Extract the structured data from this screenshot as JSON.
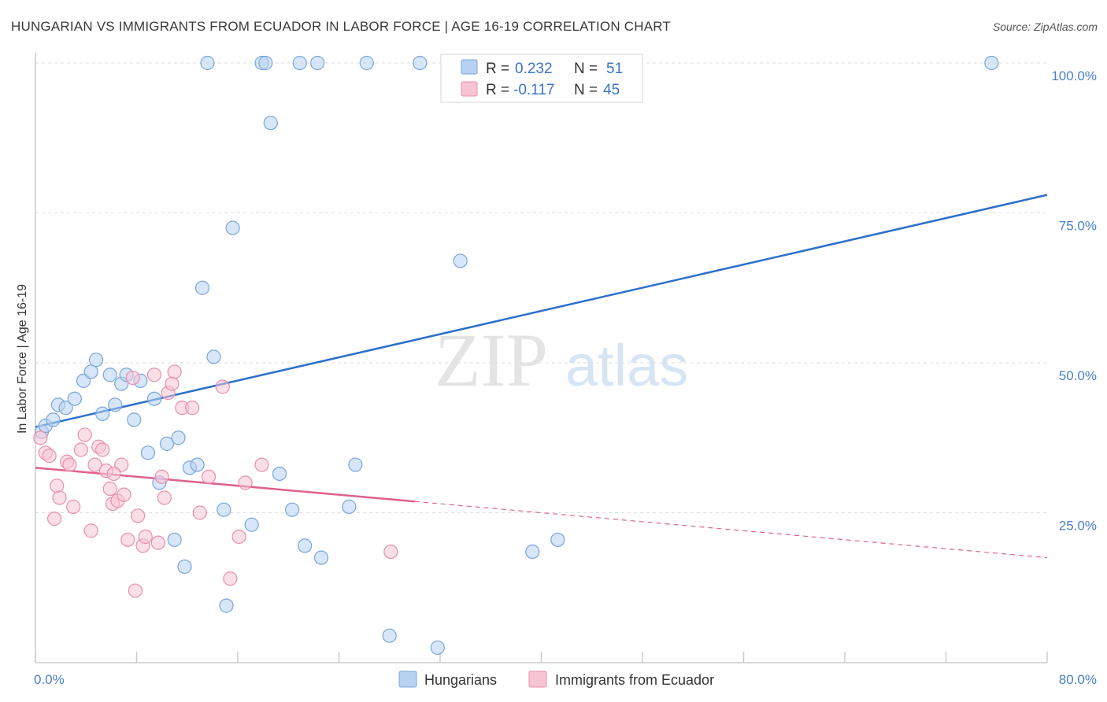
{
  "header": {
    "title": "HUNGARIAN VS IMMIGRANTS FROM ECUADOR IN LABOR FORCE | AGE 16-19 CORRELATION CHART",
    "source": "Source: ZipAtlas.com"
  },
  "watermark": {
    "zip": "ZIP",
    "atlas": "atlas"
  },
  "colors": {
    "blue_fill": "#b7d1f2",
    "blue_stroke": "#7aa5dc",
    "blue_line": "#2d6fcc",
    "pink_fill": "#f7c4d4",
    "pink_stroke": "#e88fab",
    "pink_line": "#e0608e",
    "grid": "#dedede",
    "axis": "#cccccc"
  },
  "legend": {
    "r_label": "R =",
    "n_label": "N =",
    "series": [
      {
        "name": "Hungarians",
        "r": "0.232",
        "n": "51"
      },
      {
        "name": "Immigrants from Ecuador",
        "r": "-0.117",
        "n": "45"
      }
    ]
  },
  "chart_data": {
    "type": "scatter",
    "title": "HUNGARIAN VS IMMIGRANTS FROM ECUADOR IN LABOR FORCE | AGE 16-19 CORRELATION CHART",
    "xlabel": "",
    "ylabel": "In Labor Force | Age 16-19",
    "xlim": [
      0,
      80
    ],
    "ylim": [
      0,
      102
    ],
    "x_tick_labels": [
      {
        "value": 0,
        "label": "0.0%"
      },
      {
        "value": 80,
        "label": "80.0%"
      }
    ],
    "y_tick_labels": [
      {
        "value": 25,
        "label": "25.0%"
      },
      {
        "value": 50,
        "label": "50.0%"
      },
      {
        "value": 75,
        "label": "75.0%"
      },
      {
        "value": 100,
        "label": "100.0%"
      }
    ],
    "gridlines_y": [
      25,
      50,
      75,
      100
    ],
    "x_minor_ticks": [
      0,
      8,
      16,
      24,
      32,
      40,
      48,
      56,
      64,
      72,
      80
    ],
    "series": [
      {
        "name": "Hungarians",
        "color": "blue",
        "r": 0.232,
        "n": 51,
        "trend": {
          "x": [
            0,
            80
          ],
          "y": [
            39.3,
            78.0
          ],
          "dashed_from": null
        },
        "points": [
          [
            0.5,
            38.5
          ],
          [
            0.8,
            39.5
          ],
          [
            1.4,
            40.5
          ],
          [
            1.8,
            43
          ],
          [
            2.4,
            42.5
          ],
          [
            3.1,
            44
          ],
          [
            3.8,
            47
          ],
          [
            4.4,
            48.5
          ],
          [
            4.8,
            50.5
          ],
          [
            5.3,
            41.5
          ],
          [
            5.9,
            48
          ],
          [
            6.3,
            43
          ],
          [
            6.8,
            46.5
          ],
          [
            7.2,
            48
          ],
          [
            7.8,
            40.5
          ],
          [
            8.3,
            47
          ],
          [
            8.9,
            35
          ],
          [
            9.4,
            44
          ],
          [
            9.8,
            30
          ],
          [
            10.4,
            36.5
          ],
          [
            11.0,
            20.5
          ],
          [
            11.3,
            37.5
          ],
          [
            11.8,
            16
          ],
          [
            12.2,
            32.5
          ],
          [
            13.2,
            62.5
          ],
          [
            13.6,
            100
          ],
          [
            14.1,
            51
          ],
          [
            14.9,
            25.5
          ],
          [
            15.1,
            9.5
          ],
          [
            15.6,
            72.5
          ],
          [
            17.1,
            23
          ],
          [
            17.9,
            100
          ],
          [
            18.2,
            100
          ],
          [
            18.6,
            90
          ],
          [
            19.3,
            31.5
          ],
          [
            20.3,
            25.5
          ],
          [
            21.3,
            19.5
          ],
          [
            22.3,
            100
          ],
          [
            22.6,
            17.5
          ],
          [
            24.8,
            26
          ],
          [
            25.3,
            33
          ],
          [
            26.2,
            100
          ],
          [
            28.0,
            4.5
          ],
          [
            30.4,
            100
          ],
          [
            31.8,
            2.5
          ],
          [
            33.6,
            67
          ],
          [
            39.3,
            18.5
          ],
          [
            41.3,
            20.5
          ],
          [
            75.6,
            100
          ],
          [
            20.9,
            100
          ],
          [
            12.8,
            33
          ]
        ]
      },
      {
        "name": "Immigrants from Ecuador",
        "color": "pink",
        "r": -0.117,
        "n": 45,
        "trend": {
          "x": [
            0,
            80
          ],
          "y": [
            32.5,
            17.5
          ],
          "dashed_from": 30
        },
        "points": [
          [
            0.4,
            37.5
          ],
          [
            0.8,
            35
          ],
          [
            1.1,
            34.5
          ],
          [
            1.5,
            24
          ],
          [
            1.7,
            29.5
          ],
          [
            1.9,
            27.5
          ],
          [
            2.5,
            33.5
          ],
          [
            2.7,
            33
          ],
          [
            3.0,
            26
          ],
          [
            3.6,
            35.5
          ],
          [
            3.9,
            38
          ],
          [
            4.4,
            22
          ],
          [
            4.7,
            33
          ],
          [
            5.0,
            36
          ],
          [
            5.3,
            35.5
          ],
          [
            5.6,
            32
          ],
          [
            5.9,
            29
          ],
          [
            6.1,
            26.5
          ],
          [
            6.5,
            27
          ],
          [
            6.8,
            33
          ],
          [
            7.0,
            28
          ],
          [
            7.3,
            20.5
          ],
          [
            7.7,
            47.5
          ],
          [
            7.9,
            12
          ],
          [
            8.1,
            24.5
          ],
          [
            8.5,
            19.5
          ],
          [
            8.7,
            21
          ],
          [
            9.4,
            48
          ],
          [
            9.7,
            20
          ],
          [
            10.0,
            31
          ],
          [
            10.2,
            27.5
          ],
          [
            10.5,
            45
          ],
          [
            10.8,
            46.5
          ],
          [
            11.0,
            48.5
          ],
          [
            11.6,
            42.5
          ],
          [
            12.4,
            42.5
          ],
          [
            13.0,
            25
          ],
          [
            13.7,
            31
          ],
          [
            14.8,
            46
          ],
          [
            15.4,
            14
          ],
          [
            16.1,
            21
          ],
          [
            16.6,
            30
          ],
          [
            17.9,
            33
          ],
          [
            28.1,
            18.5
          ],
          [
            6.2,
            31.5
          ]
        ]
      }
    ]
  }
}
